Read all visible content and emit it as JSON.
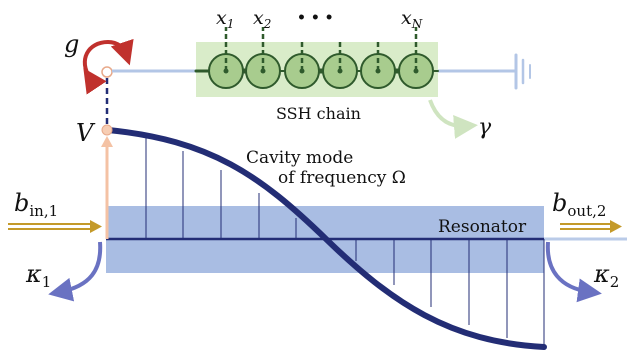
{
  "labels": {
    "g": "g",
    "V": "V",
    "ssh_chain": "SSH chain",
    "gamma": "γ",
    "cavity_line1": "Cavity mode",
    "cavity_line2": "of frequency Ω",
    "resonator": "Resonator",
    "b_in_main": "b",
    "b_in_sub": "in,1",
    "b_out_main": "b",
    "b_out_sub": "out,2",
    "kappa1_main": "κ",
    "kappa1_sub": "1",
    "kappa2_main": "κ",
    "kappa2_sub": "2"
  },
  "chain": {
    "site_labels": [
      {
        "main": "x",
        "sub": "1"
      },
      {
        "main": "x",
        "sub": "2"
      },
      {
        "main": "",
        "sub": ""
      },
      {
        "main": "",
        "sub": ""
      },
      {
        "main": "",
        "sub": ""
      },
      {
        "main": "x",
        "sub": "N"
      }
    ],
    "ellipsis": "• • •"
  },
  "colors": {
    "navy": "#232d75",
    "resonator_fill": "#a9bde3",
    "chain_box": "#d9ecc9",
    "site_fill": "#a8cc8e",
    "site_stroke": "#2f5a2c",
    "wire": "#b3c6e6",
    "arrow_red": "#c0312d",
    "gold": "#c49a2a",
    "kappa_arrow": "#6a72c2",
    "gamma_arrow": "#cfe4c0",
    "peach": "#f4c2a4"
  }
}
